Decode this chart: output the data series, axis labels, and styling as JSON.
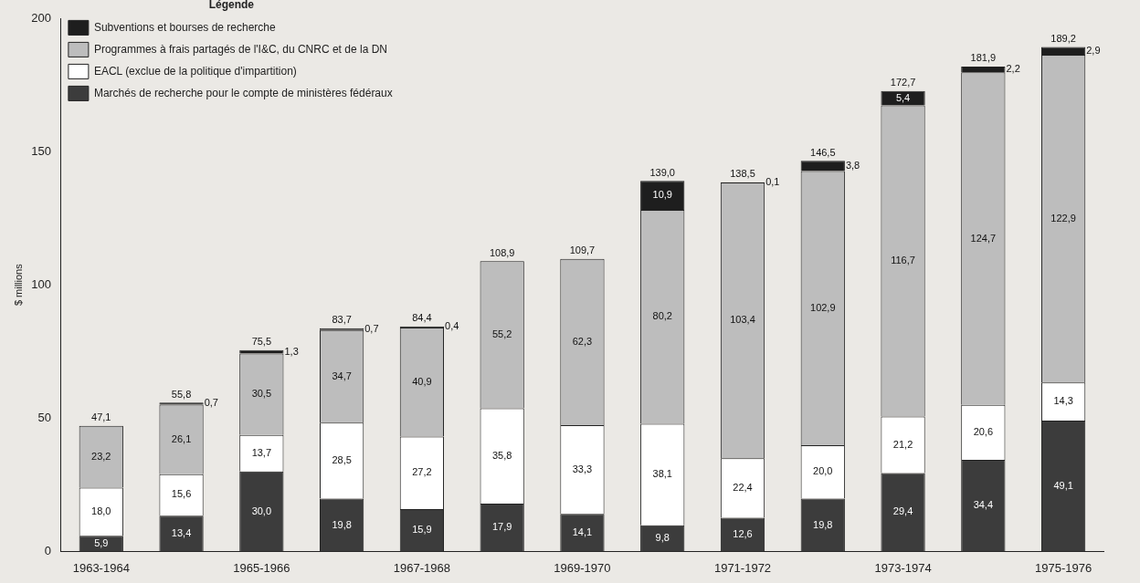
{
  "chart_data": {
    "type": "bar",
    "stacked": true,
    "ylabel": "$ millions",
    "legend_title": "Légende",
    "legend": "top left",
    "grid": false,
    "categories": [
      "1963-1964",
      null,
      "1965-1966",
      null,
      "1967-1968",
      null,
      "1969-1970",
      null,
      "1971-1972",
      null,
      "1973-1974",
      null,
      "1975-1976"
    ],
    "ylim": [
      0,
      200
    ],
    "yticks": [
      0,
      50,
      100,
      150,
      200
    ],
    "series": [
      {
        "name": "Marchés de recherche pour le compte de ministères fédéraux",
        "color": "#3c3c3c",
        "values": [
          5.9,
          13.4,
          30.0,
          19.8,
          15.9,
          17.9,
          14.1,
          9.8,
          12.6,
          19.8,
          29.4,
          34.4,
          49.1
        ],
        "value_labels": [
          "5,9",
          "13,4",
          "30,0",
          "19,8",
          "15,9",
          "17,9",
          "14,1",
          "9,8",
          "12,6",
          "19,8",
          "29,4",
          "34,4",
          "49,1"
        ]
      },
      {
        "name": "EACL (exclue de la politique d'impartition)",
        "color": "#ffffff",
        "values": [
          18.0,
          15.6,
          13.7,
          28.5,
          27.2,
          35.8,
          33.3,
          38.1,
          22.4,
          20.0,
          21.2,
          20.6,
          14.3
        ],
        "value_labels": [
          "18,0",
          "15,6",
          "13,7",
          "28,5",
          "27,2",
          "35,8",
          "33,3",
          "38,1",
          "22,4",
          "20,0",
          "21,2",
          "20,6",
          "14,3"
        ]
      },
      {
        "name": "Programmes à frais partagés de l'I&C, du CNRC et de la DN",
        "color": "#bdbdbd",
        "values": [
          23.2,
          26.1,
          30.5,
          34.7,
          40.9,
          55.2,
          62.3,
          80.2,
          103.4,
          102.9,
          116.7,
          124.7,
          122.9
        ],
        "value_labels": [
          "23,2",
          "26,1",
          "30,5",
          "34,7",
          "40,9",
          "55,2",
          "62,3",
          "80,2",
          "103,4",
          "102,9",
          "116,7",
          "124,7",
          "122,9"
        ]
      },
      {
        "name": "Subventions et bourses de recherche",
        "color": "#1e1e1e",
        "values": [
          null,
          0.7,
          1.3,
          0.7,
          0.4,
          null,
          null,
          10.9,
          0.1,
          3.8,
          5.4,
          2.2,
          2.9
        ],
        "value_labels": [
          null,
          "0,7",
          "1,3",
          "0,7",
          "0,4",
          null,
          null,
          "10,9",
          "0,1",
          "3,8",
          "5,4",
          "2,2",
          "2,9"
        ]
      }
    ],
    "totals": [
      "47,1",
      "55,8",
      "75,5",
      "83,7",
      "84,4",
      "108,9",
      "109,7",
      "139,0",
      "138,5",
      "146,5",
      "172,7",
      "181,9",
      "189,2"
    ]
  }
}
